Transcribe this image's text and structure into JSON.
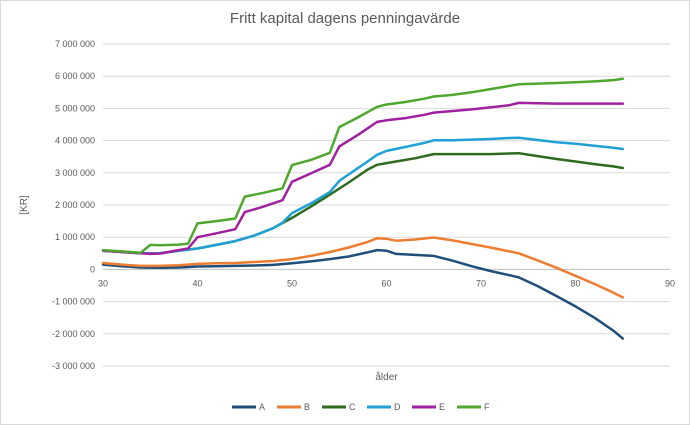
{
  "chart_data": {
    "type": "line",
    "title": "Fritt kapital dagens penningavärde",
    "xlabel": "ålder",
    "ylabel": "[KR]",
    "xlim": [
      30,
      90
    ],
    "ylim": [
      -3000000,
      7000000
    ],
    "xticks": [
      30,
      40,
      50,
      60,
      70,
      80,
      90
    ],
    "yticks": [
      -3000000,
      -2000000,
      -1000000,
      0,
      1000000,
      2000000,
      3000000,
      4000000,
      5000000,
      6000000,
      7000000
    ],
    "ytick_labels": [
      "-3 000 000",
      "-2 000 000",
      "-1 000 000",
      "0",
      "1 000 000",
      "2 000 000",
      "3 000 000",
      "4 000 000",
      "5 000 000",
      "6 000 000",
      "7 000 000"
    ],
    "grid": "horizontal",
    "legend": "bottom",
    "series": [
      {
        "name": "A",
        "color": "#1f4e79",
        "x": [
          30,
          32,
          34,
          36,
          38,
          40,
          42,
          44,
          46,
          48,
          50,
          52,
          54,
          56,
          58,
          59,
          60,
          61,
          63,
          65,
          67,
          69,
          71,
          73,
          74,
          76,
          78,
          80,
          82,
          84,
          85
        ],
        "y": [
          150000,
          100000,
          60000,
          50000,
          60000,
          90000,
          100000,
          110000,
          120000,
          140000,
          190000,
          250000,
          320000,
          400000,
          530000,
          600000,
          580000,
          480000,
          450000,
          420000,
          270000,
          100000,
          -50000,
          -180000,
          -250000,
          -520000,
          -830000,
          -1150000,
          -1500000,
          -1900000,
          -2150000
        ]
      },
      {
        "name": "B",
        "color": "#ed7d31",
        "x": [
          30,
          32,
          34,
          36,
          38,
          40,
          42,
          44,
          46,
          48,
          50,
          52,
          54,
          56,
          58,
          59,
          60,
          61,
          63,
          65,
          67,
          69,
          71,
          73,
          74,
          76,
          78,
          80,
          82,
          84,
          85
        ],
        "y": [
          200000,
          150000,
          110000,
          110000,
          130000,
          170000,
          190000,
          200000,
          230000,
          260000,
          320000,
          420000,
          540000,
          680000,
          850000,
          970000,
          950000,
          890000,
          930000,
          990000,
          900000,
          790000,
          680000,
          560000,
          500000,
          280000,
          50000,
          -200000,
          -450000,
          -720000,
          -870000
        ]
      },
      {
        "name": "C",
        "color": "#2e6b1f",
        "x": [
          30,
          32,
          34,
          36,
          38,
          40,
          42,
          44,
          46,
          48,
          50,
          52,
          54,
          56,
          58,
          59,
          60,
          61,
          63,
          65,
          67,
          69,
          71,
          73,
          74,
          76,
          78,
          80,
          82,
          84,
          85
        ],
        "y": [
          580000,
          540000,
          500000,
          500000,
          580000,
          650000,
          760000,
          880000,
          1050000,
          1280000,
          1600000,
          1950000,
          2320000,
          2700000,
          3100000,
          3250000,
          3300000,
          3350000,
          3450000,
          3580000,
          3580000,
          3580000,
          3580000,
          3600000,
          3610000,
          3520000,
          3430000,
          3350000,
          3270000,
          3200000,
          3150000
        ]
      },
      {
        "name": "D",
        "color": "#1fa1d6",
        "x": [
          30,
          32,
          34,
          36,
          38,
          40,
          42,
          44,
          46,
          48,
          49,
          50,
          52,
          54,
          55,
          56,
          58,
          59,
          60,
          62,
          64,
          65,
          67,
          69,
          71,
          73,
          74,
          76,
          78,
          80,
          82,
          84,
          85
        ],
        "y": [
          580000,
          540000,
          500000,
          500000,
          580000,
          650000,
          760000,
          880000,
          1050000,
          1280000,
          1450000,
          1750000,
          2050000,
          2400000,
          2750000,
          2950000,
          3350000,
          3560000,
          3680000,
          3800000,
          3930000,
          4010000,
          4010000,
          4030000,
          4050000,
          4080000,
          4090000,
          4020000,
          3950000,
          3900000,
          3840000,
          3780000,
          3740000
        ]
      },
      {
        "name": "E",
        "color": "#a020a0",
        "x": [
          30,
          32,
          34,
          35,
          36,
          38,
          39,
          40,
          42,
          44,
          45,
          47,
          49,
          50,
          52,
          54,
          55,
          57,
          59,
          60,
          62,
          64,
          65,
          67,
          69,
          71,
          73,
          74,
          76,
          78,
          80,
          82,
          84,
          85
        ],
        "y": [
          580000,
          540000,
          500000,
          480000,
          490000,
          600000,
          650000,
          1000000,
          1120000,
          1250000,
          1780000,
          1950000,
          2150000,
          2720000,
          2980000,
          3250000,
          3820000,
          4180000,
          4580000,
          4630000,
          4700000,
          4800000,
          4870000,
          4920000,
          4970000,
          5030000,
          5100000,
          5170000,
          5160000,
          5150000,
          5150000,
          5150000,
          5150000,
          5150000
        ]
      },
      {
        "name": "F",
        "color": "#4ea72e",
        "x": [
          30,
          32,
          34,
          35,
          36,
          38,
          39,
          40,
          42,
          44,
          45,
          47,
          49,
          50,
          52,
          54,
          55,
          57,
          59,
          60,
          62,
          64,
          65,
          67,
          69,
          71,
          73,
          74,
          76,
          78,
          80,
          82,
          84,
          85
        ],
        "y": [
          600000,
          560000,
          520000,
          760000,
          750000,
          770000,
          800000,
          1430000,
          1500000,
          1580000,
          2260000,
          2380000,
          2520000,
          3240000,
          3400000,
          3620000,
          4420000,
          4720000,
          5050000,
          5120000,
          5200000,
          5300000,
          5370000,
          5420000,
          5500000,
          5600000,
          5700000,
          5750000,
          5770000,
          5790000,
          5810000,
          5840000,
          5880000,
          5920000
        ]
      }
    ]
  }
}
